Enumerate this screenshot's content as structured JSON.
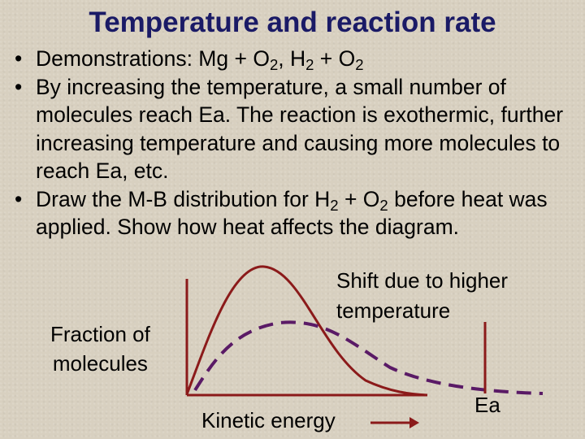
{
  "title": "Temperature and reaction rate",
  "bullets": [
    {
      "parts": [
        {
          "t": "Demonstrations: Mg + O"
        },
        {
          "sub": "2"
        },
        {
          "t": ", H"
        },
        {
          "sub": "2"
        },
        {
          "t": " + O"
        },
        {
          "sub": "2"
        }
      ]
    },
    {
      "parts": [
        {
          "t": "By increasing the temperature, a small number of molecules reach Ea.  The reaction is exothermic, further increasing temperature and causing more molecules to reach Ea, etc."
        }
      ]
    },
    {
      "parts": [
        {
          "t": "Draw the M-B distribution for H"
        },
        {
          "sub": "2"
        },
        {
          "t": " + O"
        },
        {
          "sub": "2"
        },
        {
          "t": " before heat was applied.  Show how heat affects the diagram."
        }
      ]
    }
  ],
  "diagram": {
    "y_label_line1": "Fraction of",
    "y_label_line2": "molecules",
    "x_label": "Kinetic energy",
    "shift_label_line1": "Shift due to higher",
    "shift_label_line2": "temperature",
    "ea_label": "Ea",
    "curve_color": "#8b1a1a",
    "dashed_curve_color": "#5a1a66"
  }
}
